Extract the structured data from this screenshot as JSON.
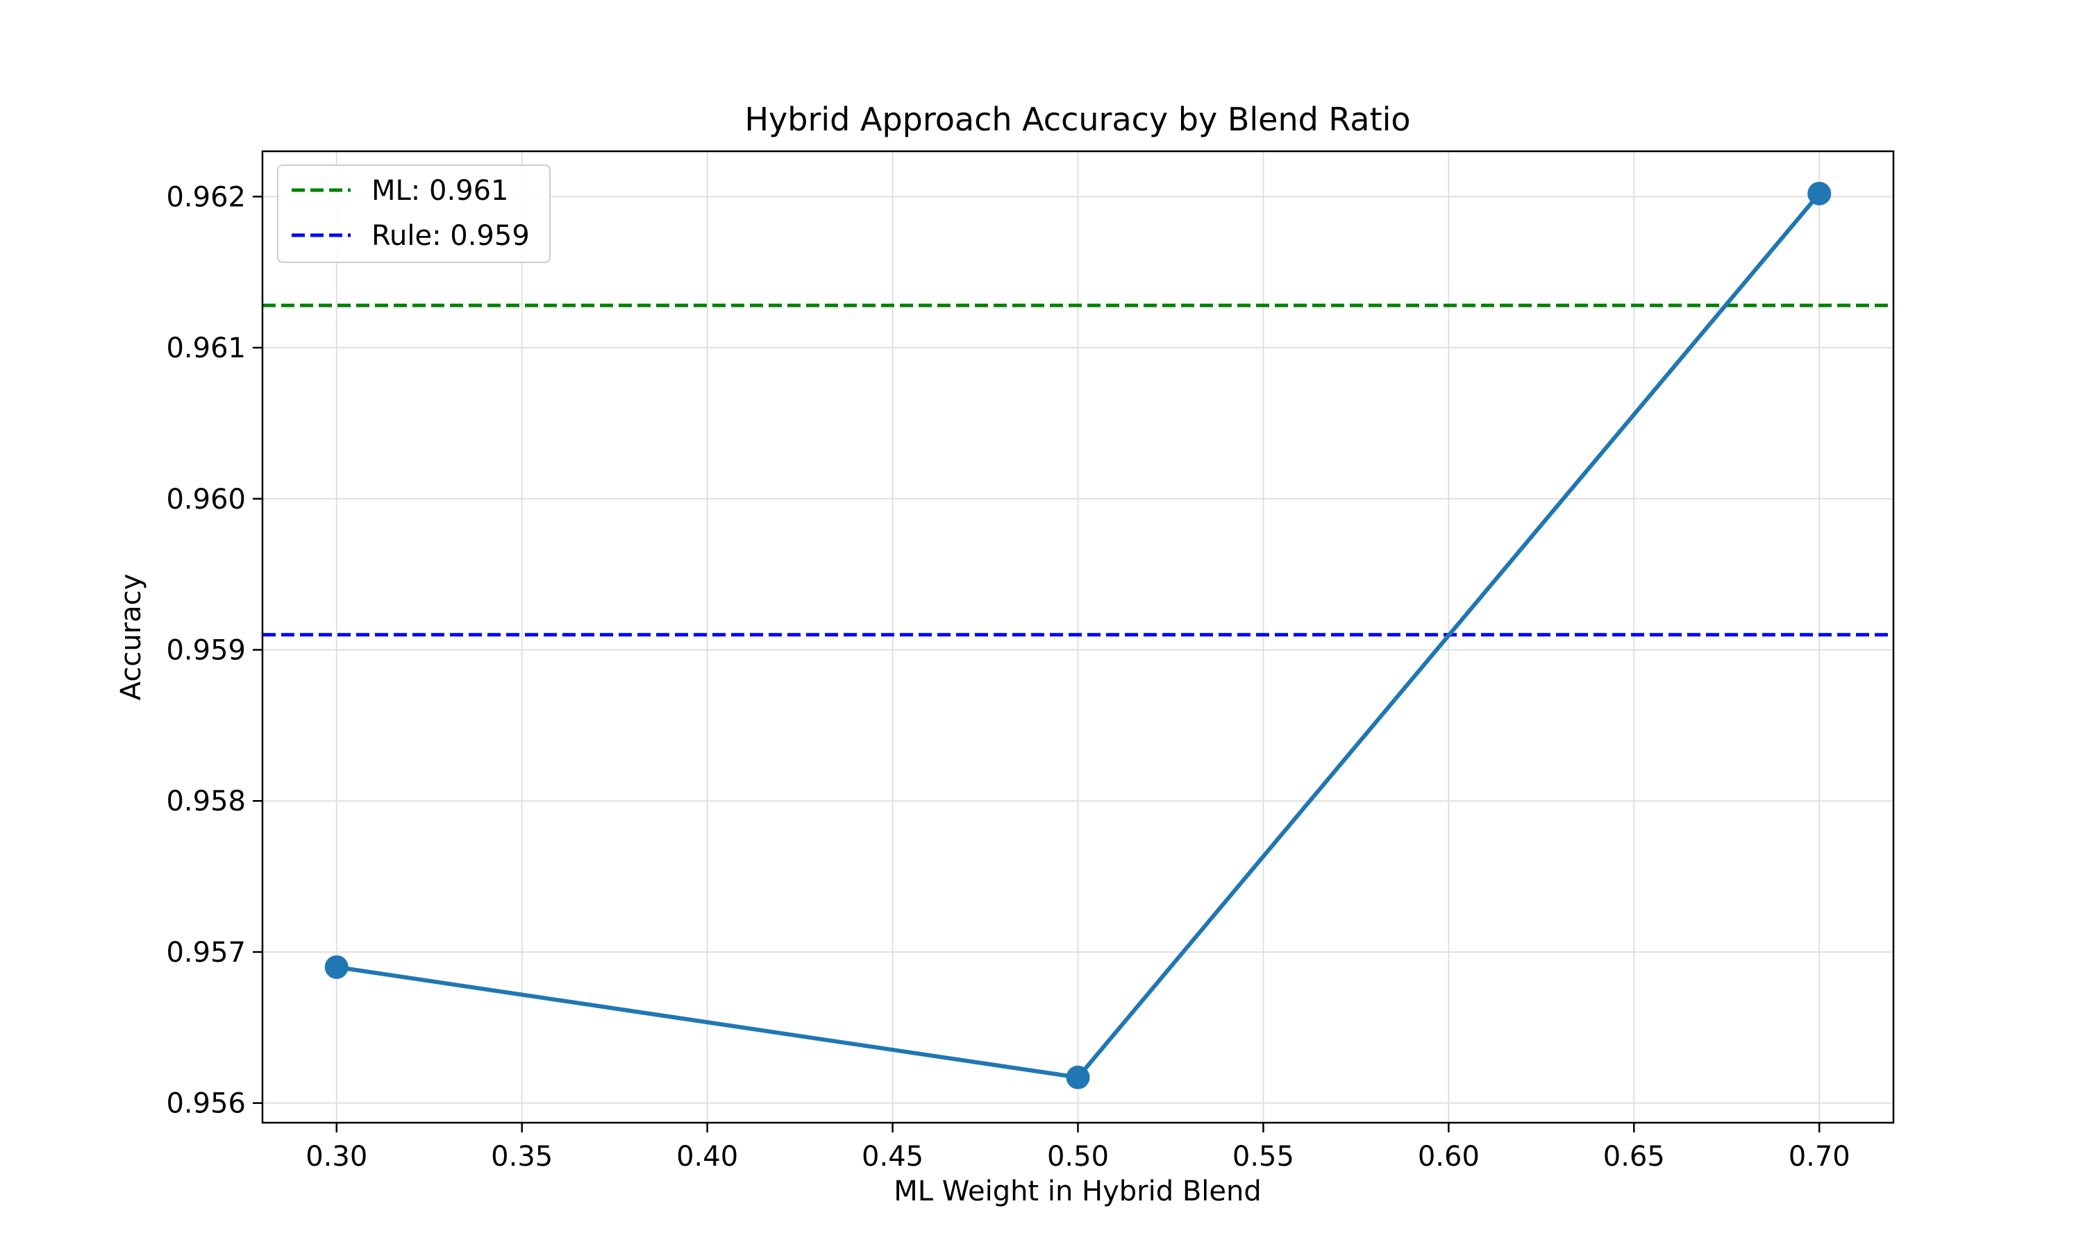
{
  "chart_data": {
    "type": "line",
    "title": "Hybrid Approach Accuracy by Blend Ratio",
    "xlabel": "ML Weight in Hybrid Blend",
    "ylabel": "Accuracy",
    "xlim": [
      0.28,
      0.72
    ],
    "ylim": [
      0.95587,
      0.9623
    ],
    "x_ticks": [
      0.3,
      0.35,
      0.4,
      0.45,
      0.5,
      0.55,
      0.6,
      0.65,
      0.7
    ],
    "x_tick_labels": [
      "0.30",
      "0.35",
      "0.40",
      "0.45",
      "0.50",
      "0.55",
      "0.60",
      "0.65",
      "0.70"
    ],
    "y_ticks": [
      0.956,
      0.957,
      0.958,
      0.959,
      0.96,
      0.961,
      0.962
    ],
    "y_tick_labels": [
      "0.956",
      "0.957",
      "0.958",
      "0.959",
      "0.960",
      "0.961",
      "0.962"
    ],
    "grid": true,
    "legend_position": "upper-left",
    "series": [
      {
        "x": [
          0.3,
          0.5,
          0.7
        ],
        "y": [
          0.9569,
          0.95617,
          0.96202
        ],
        "color": "#1f77b4",
        "marker": "circle"
      }
    ],
    "reference_lines": [
      {
        "name": "ML: 0.961",
        "y": 0.96128,
        "color": "#008000",
        "style": "dashed"
      },
      {
        "name": "Rule: 0.959",
        "y": 0.9591,
        "color": "#0000ff",
        "style": "dashed"
      }
    ]
  }
}
